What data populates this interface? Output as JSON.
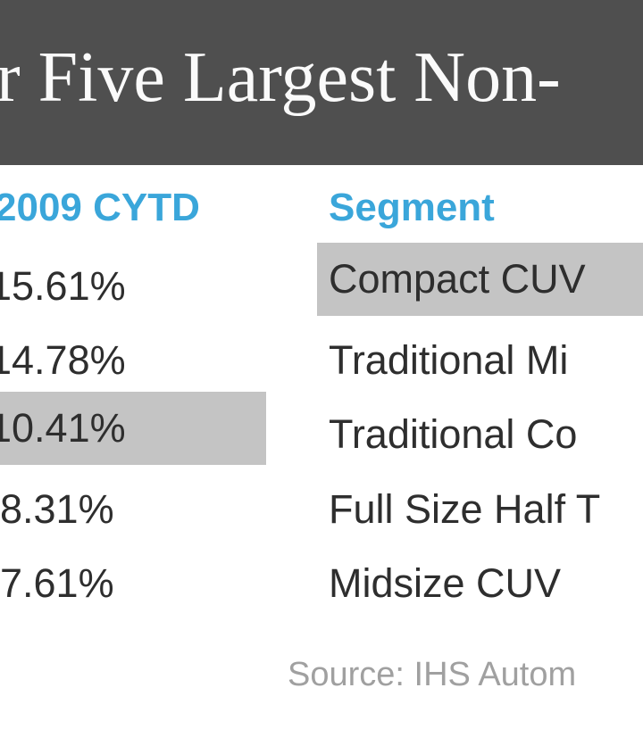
{
  "title": "r Five Largest Non-",
  "columns": {
    "share": "2009 CYTD",
    "segment": "Segment"
  },
  "rows": [
    {
      "share": "15.61%",
      "segment": "Compact CUV"
    },
    {
      "share": "14.78%",
      "segment": "Traditional Mi"
    },
    {
      "share": "10.41%",
      "segment": "Traditional Co"
    },
    {
      "share": "8.31%",
      "segment": "Full Size Half T"
    },
    {
      "share": "7.61%",
      "segment": "Midsize CUV"
    }
  ],
  "source": "Source: IHS Autom",
  "colors": {
    "header_bg": "#4f4f4f",
    "column_header": "#3aa6da",
    "highlight": "#c4c4c4"
  }
}
